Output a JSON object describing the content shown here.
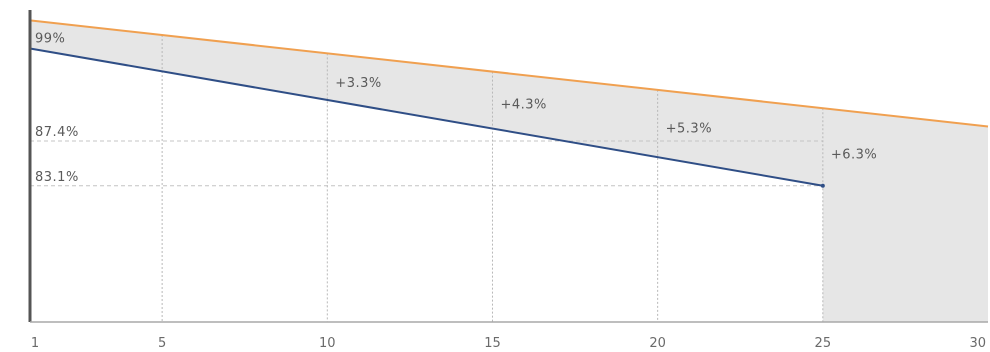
{
  "chart_data": {
    "type": "line",
    "title": "",
    "xlabel": "",
    "ylabel": "",
    "x_ticks": [
      "1",
      "5",
      "10",
      "15",
      "20",
      "25",
      "30"
    ],
    "xlim": [
      1,
      30
    ],
    "ylim": [
      70,
      100
    ],
    "series": [
      {
        "key": "upper",
        "color": "#f0a050",
        "points": [
          [
            1,
            99
          ],
          [
            30,
            88.8
          ]
        ]
      },
      {
        "key": "lower",
        "color": "#2f4e86",
        "points": [
          [
            1,
            96.3
          ],
          [
            25,
            83.1
          ]
        ]
      }
    ],
    "gap_fill_color": "#e6e6e6",
    "right_region": {
      "from": 25,
      "to": 30
    },
    "reference_lines": [
      {
        "y": 87.4,
        "label": "87.4%"
      },
      {
        "y": 83.1,
        "label": "83.1%"
      }
    ],
    "start_label": "99%",
    "vertical_markers": [
      5,
      10,
      15,
      20,
      25
    ],
    "annotations": [
      {
        "x": 10,
        "y": 93.1,
        "text": "+3.3%"
      },
      {
        "x": 15,
        "y": 91.0,
        "text": "+4.3%"
      },
      {
        "x": 20,
        "y": 88.7,
        "text": "+5.3%"
      },
      {
        "x": 25,
        "y": 86.2,
        "text": "+6.3%"
      }
    ]
  }
}
